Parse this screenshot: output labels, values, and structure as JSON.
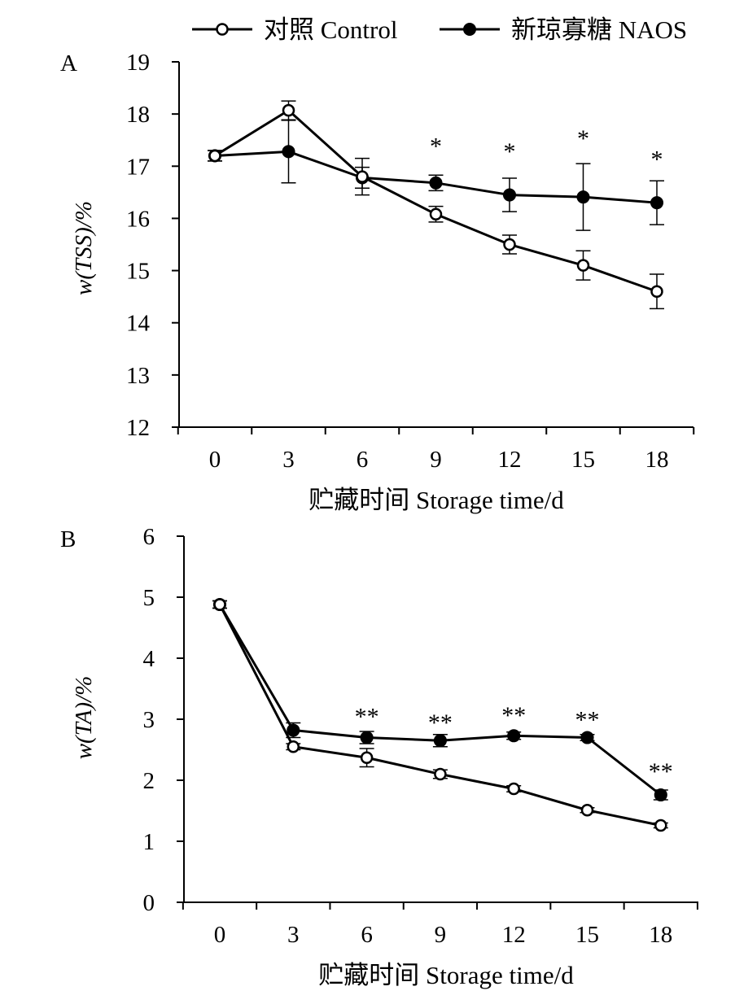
{
  "legend": {
    "control_label": "对照 Control",
    "naos_label": "新琼寡糖 NAOS"
  },
  "chart_data": [
    {
      "type": "line",
      "panel_label": "A",
      "xlabel": "贮藏时间 Storage time/d",
      "ylabel": "w(TSS)/%",
      "x": [
        0,
        3,
        6,
        9,
        12,
        15,
        18
      ],
      "xticks": [
        "0",
        "3",
        "6",
        "9",
        "12",
        "15",
        "18"
      ],
      "ylim": [
        12,
        19
      ],
      "yticks": [
        "12",
        "13",
        "14",
        "15",
        "16",
        "17",
        "18",
        "19"
      ],
      "series": [
        {
          "name": "对照 Control",
          "marker": "open-circle",
          "values": [
            17.2,
            18.07,
            16.8,
            16.08,
            15.5,
            15.1,
            14.6
          ],
          "errors": [
            0.1,
            0.18,
            0.35,
            0.15,
            0.18,
            0.28,
            0.33
          ]
        },
        {
          "name": "新琼寡糖 NAOS",
          "marker": "filled-circle",
          "values": [
            17.2,
            17.28,
            16.78,
            16.68,
            16.45,
            16.41,
            16.3
          ],
          "errors": [
            0.1,
            0.6,
            0.2,
            0.15,
            0.32,
            0.64,
            0.42
          ]
        }
      ],
      "annotations": [
        {
          "x": 9,
          "text": "*",
          "y": 17.45
        },
        {
          "x": 12,
          "text": "*",
          "y": 17.35
        },
        {
          "x": 15,
          "text": "*",
          "y": 17.6
        },
        {
          "x": 18,
          "text": "*",
          "y": 17.2
        }
      ]
    },
    {
      "type": "line",
      "panel_label": "B",
      "xlabel": "贮藏时间  Storage time/d",
      "ylabel": "w(TA)/%",
      "x": [
        0,
        3,
        6,
        9,
        12,
        15,
        18
      ],
      "xticks": [
        "0",
        "3",
        "6",
        "9",
        "12",
        "15",
        "18"
      ],
      "ylim": [
        0,
        6
      ],
      "yticks": [
        "0",
        "1",
        "2",
        "3",
        "4",
        "5",
        "6"
      ],
      "series": [
        {
          "name": "对照 Control",
          "marker": "open-circle",
          "values": [
            4.88,
            2.55,
            2.37,
            2.1,
            1.86,
            1.51,
            1.26
          ],
          "errors": [
            0.06,
            0.05,
            0.15,
            0.07,
            0.05,
            0.04,
            0.04
          ]
        },
        {
          "name": "新琼寡糖 NAOS",
          "marker": "filled-circle",
          "values": [
            4.88,
            2.82,
            2.7,
            2.65,
            2.73,
            2.7,
            1.76
          ],
          "errors": [
            0.06,
            0.12,
            0.1,
            0.1,
            0.06,
            0.05,
            0.08
          ]
        }
      ],
      "annotations": [
        {
          "x": 6,
          "text": "**",
          "y": 3.1
        },
        {
          "x": 9,
          "text": "**",
          "y": 3.0
        },
        {
          "x": 12,
          "text": "**",
          "y": 3.12
        },
        {
          "x": 15,
          "text": "**",
          "y": 3.05
        },
        {
          "x": 18,
          "text": "**",
          "y": 2.2
        }
      ]
    }
  ]
}
